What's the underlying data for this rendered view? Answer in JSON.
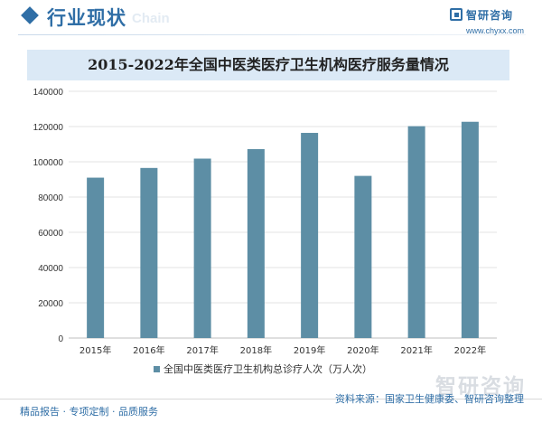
{
  "header": {
    "title": "行业现状",
    "watermark": "Chain",
    "brand_name": "智研咨询",
    "brand_url": "www.chyxx.com"
  },
  "chart_data": {
    "type": "bar",
    "title": "2015-2022年全国中医类医疗卫生机构医疗服务量情况",
    "categories": [
      "2015年",
      "2016年",
      "2017年",
      "2018年",
      "2019年",
      "2020年",
      "2021年",
      "2022年"
    ],
    "series": [
      {
        "name": "全国中医类医疗卫生机构总诊疗人次（万人次）",
        "values": [
          91000,
          96500,
          101800,
          107200,
          116400,
          92000,
          120200,
          122700
        ]
      }
    ],
    "ylim": [
      0,
      140000
    ],
    "yticks": [
      "0",
      "20000",
      "40000",
      "60000",
      "80000",
      "100000",
      "120000",
      "140000"
    ],
    "grid": true,
    "legend_position": "bottom",
    "bar_color": "#5d8ea5"
  },
  "footer": {
    "left": "精品报告 · 专项定制 · 品质服务",
    "source": "资料来源：国家卫生健康委、智研咨询整理",
    "watermark": "智研咨询"
  }
}
